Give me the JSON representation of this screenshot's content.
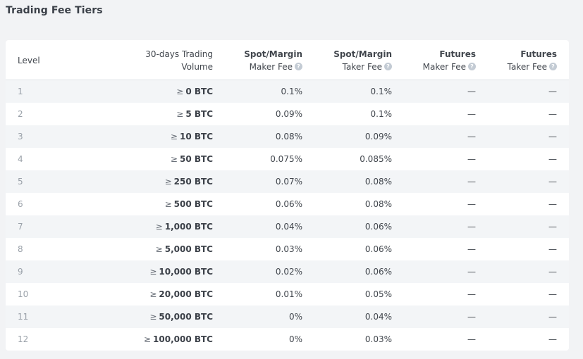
{
  "page": {
    "title": "Trading Fee Tiers"
  },
  "table": {
    "headers": {
      "level": "Level",
      "volume_line1": "30-days Trading",
      "volume_line2": "Volume",
      "spot_maker_line1": "Spot/Margin",
      "spot_maker_line2": "Maker Fee",
      "spot_taker_line1": "Spot/Margin",
      "spot_taker_line2": "Taker Fee",
      "futures_maker_line1": "Futures",
      "futures_maker_line2": "Maker Fee",
      "futures_taker_line1": "Futures",
      "futures_taker_line2": "Taker Fee",
      "help_glyph": "?"
    },
    "ge_symbol": "≥",
    "rows": [
      {
        "level": "1",
        "volume": "0 BTC",
        "spot_maker": "0.1%",
        "spot_taker": "0.1%",
        "futures_maker": "—",
        "futures_taker": "—"
      },
      {
        "level": "2",
        "volume": "5 BTC",
        "spot_maker": "0.09%",
        "spot_taker": "0.1%",
        "futures_maker": "—",
        "futures_taker": "—"
      },
      {
        "level": "3",
        "volume": "10 BTC",
        "spot_maker": "0.08%",
        "spot_taker": "0.09%",
        "futures_maker": "—",
        "futures_taker": "—"
      },
      {
        "level": "4",
        "volume": "50 BTC",
        "spot_maker": "0.075%",
        "spot_taker": "0.085%",
        "futures_maker": "—",
        "futures_taker": "—"
      },
      {
        "level": "5",
        "volume": "250 BTC",
        "spot_maker": "0.07%",
        "spot_taker": "0.08%",
        "futures_maker": "—",
        "futures_taker": "—"
      },
      {
        "level": "6",
        "volume": "500 BTC",
        "spot_maker": "0.06%",
        "spot_taker": "0.08%",
        "futures_maker": "—",
        "futures_taker": "—"
      },
      {
        "level": "7",
        "volume": "1,000 BTC",
        "spot_maker": "0.04%",
        "spot_taker": "0.06%",
        "futures_maker": "—",
        "futures_taker": "—"
      },
      {
        "level": "8",
        "volume": "5,000 BTC",
        "spot_maker": "0.03%",
        "spot_taker": "0.06%",
        "futures_maker": "—",
        "futures_taker": "—"
      },
      {
        "level": "9",
        "volume": "10,000 BTC",
        "spot_maker": "0.02%",
        "spot_taker": "0.06%",
        "futures_maker": "—",
        "futures_taker": "—"
      },
      {
        "level": "10",
        "volume": "20,000 BTC",
        "spot_maker": "0.01%",
        "spot_taker": "0.05%",
        "futures_maker": "—",
        "futures_taker": "—"
      },
      {
        "level": "11",
        "volume": "50,000 BTC",
        "spot_maker": "0%",
        "spot_taker": "0.04%",
        "futures_maker": "—",
        "futures_taker": "—"
      },
      {
        "level": "12",
        "volume": "100,000 BTC",
        "spot_maker": "0%",
        "spot_taker": "0.03%",
        "futures_maker": "—",
        "futures_taker": "—"
      }
    ]
  }
}
